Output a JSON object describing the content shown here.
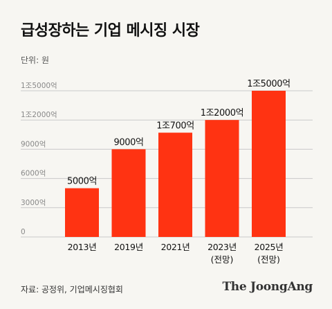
{
  "title": "급성장하는 기업 메시징 시장",
  "unit_label": "단위: 원",
  "source": "자료: 공정위, 기업메시징협회",
  "logo_text": "The JoongAng",
  "colors": {
    "bar": "#ff3312",
    "grid": "#c9c9c9",
    "axis_text": "#888888",
    "label_text": "#111111"
  },
  "chart_data": {
    "type": "bar",
    "title": "급성장하는 기업 메시징 시장",
    "xlabel": "",
    "ylabel": "",
    "unit": "원",
    "categories": [
      "2013년",
      "2019년",
      "2021년",
      "2023년",
      "2025년"
    ],
    "category_sublabels": [
      "",
      "",
      "",
      "(전망)",
      "(전망)"
    ],
    "values": [
      5000,
      9000,
      10700,
      12000,
      15000
    ],
    "value_labels": [
      "5000억",
      "9000억",
      "1조700억",
      "1조2000억",
      "1조5000억"
    ],
    "yticks": [
      0,
      3000,
      6000,
      9000,
      12000,
      15000
    ],
    "ytick_labels": [
      "0",
      "3000억",
      "6000억",
      "9000억",
      "1조2000억",
      "1조5000억"
    ],
    "ylim": [
      0,
      15000
    ],
    "grid": true,
    "legend": "none"
  }
}
